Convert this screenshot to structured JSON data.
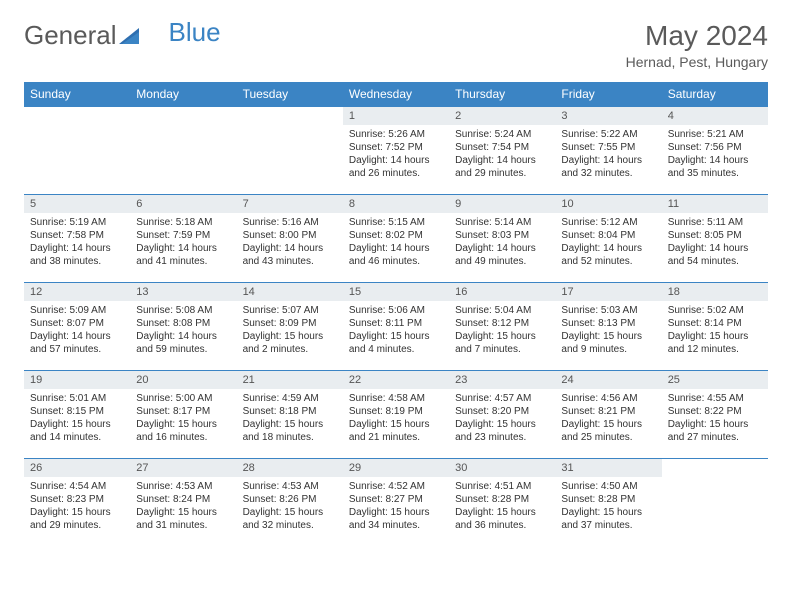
{
  "logo": {
    "text1": "General",
    "text2": "Blue",
    "text1_color": "#6a6a6a",
    "text2_color": "#3b84c4"
  },
  "title": "May 2024",
  "location": "Hernad, Pest, Hungary",
  "day_names": [
    "Sunday",
    "Monday",
    "Tuesday",
    "Wednesday",
    "Thursday",
    "Friday",
    "Saturday"
  ],
  "colors": {
    "header_bg": "#3b84c4",
    "header_text": "#ffffff",
    "daynum_bg": "#e9edf0",
    "cell_border": "#3b84c4"
  },
  "weeks": [
    [
      null,
      null,
      null,
      {
        "n": "1",
        "sr": "5:26 AM",
        "ss": "7:52 PM",
        "dh": "14",
        "dm": "26"
      },
      {
        "n": "2",
        "sr": "5:24 AM",
        "ss": "7:54 PM",
        "dh": "14",
        "dm": "29"
      },
      {
        "n": "3",
        "sr": "5:22 AM",
        "ss": "7:55 PM",
        "dh": "14",
        "dm": "32"
      },
      {
        "n": "4",
        "sr": "5:21 AM",
        "ss": "7:56 PM",
        "dh": "14",
        "dm": "35"
      }
    ],
    [
      {
        "n": "5",
        "sr": "5:19 AM",
        "ss": "7:58 PM",
        "dh": "14",
        "dm": "38"
      },
      {
        "n": "6",
        "sr": "5:18 AM",
        "ss": "7:59 PM",
        "dh": "14",
        "dm": "41"
      },
      {
        "n": "7",
        "sr": "5:16 AM",
        "ss": "8:00 PM",
        "dh": "14",
        "dm": "43"
      },
      {
        "n": "8",
        "sr": "5:15 AM",
        "ss": "8:02 PM",
        "dh": "14",
        "dm": "46"
      },
      {
        "n": "9",
        "sr": "5:14 AM",
        "ss": "8:03 PM",
        "dh": "14",
        "dm": "49"
      },
      {
        "n": "10",
        "sr": "5:12 AM",
        "ss": "8:04 PM",
        "dh": "14",
        "dm": "52"
      },
      {
        "n": "11",
        "sr": "5:11 AM",
        "ss": "8:05 PM",
        "dh": "14",
        "dm": "54"
      }
    ],
    [
      {
        "n": "12",
        "sr": "5:09 AM",
        "ss": "8:07 PM",
        "dh": "14",
        "dm": "57"
      },
      {
        "n": "13",
        "sr": "5:08 AM",
        "ss": "8:08 PM",
        "dh": "14",
        "dm": "59"
      },
      {
        "n": "14",
        "sr": "5:07 AM",
        "ss": "8:09 PM",
        "dh": "15",
        "dm": "2"
      },
      {
        "n": "15",
        "sr": "5:06 AM",
        "ss": "8:11 PM",
        "dh": "15",
        "dm": "4"
      },
      {
        "n": "16",
        "sr": "5:04 AM",
        "ss": "8:12 PM",
        "dh": "15",
        "dm": "7"
      },
      {
        "n": "17",
        "sr": "5:03 AM",
        "ss": "8:13 PM",
        "dh": "15",
        "dm": "9"
      },
      {
        "n": "18",
        "sr": "5:02 AM",
        "ss": "8:14 PM",
        "dh": "15",
        "dm": "12"
      }
    ],
    [
      {
        "n": "19",
        "sr": "5:01 AM",
        "ss": "8:15 PM",
        "dh": "15",
        "dm": "14"
      },
      {
        "n": "20",
        "sr": "5:00 AM",
        "ss": "8:17 PM",
        "dh": "15",
        "dm": "16"
      },
      {
        "n": "21",
        "sr": "4:59 AM",
        "ss": "8:18 PM",
        "dh": "15",
        "dm": "18"
      },
      {
        "n": "22",
        "sr": "4:58 AM",
        "ss": "8:19 PM",
        "dh": "15",
        "dm": "21"
      },
      {
        "n": "23",
        "sr": "4:57 AM",
        "ss": "8:20 PM",
        "dh": "15",
        "dm": "23"
      },
      {
        "n": "24",
        "sr": "4:56 AM",
        "ss": "8:21 PM",
        "dh": "15",
        "dm": "25"
      },
      {
        "n": "25",
        "sr": "4:55 AM",
        "ss": "8:22 PM",
        "dh": "15",
        "dm": "27"
      }
    ],
    [
      {
        "n": "26",
        "sr": "4:54 AM",
        "ss": "8:23 PM",
        "dh": "15",
        "dm": "29"
      },
      {
        "n": "27",
        "sr": "4:53 AM",
        "ss": "8:24 PM",
        "dh": "15",
        "dm": "31"
      },
      {
        "n": "28",
        "sr": "4:53 AM",
        "ss": "8:26 PM",
        "dh": "15",
        "dm": "32"
      },
      {
        "n": "29",
        "sr": "4:52 AM",
        "ss": "8:27 PM",
        "dh": "15",
        "dm": "34"
      },
      {
        "n": "30",
        "sr": "4:51 AM",
        "ss": "8:28 PM",
        "dh": "15",
        "dm": "36"
      },
      {
        "n": "31",
        "sr": "4:50 AM",
        "ss": "8:28 PM",
        "dh": "15",
        "dm": "37"
      },
      null
    ]
  ]
}
